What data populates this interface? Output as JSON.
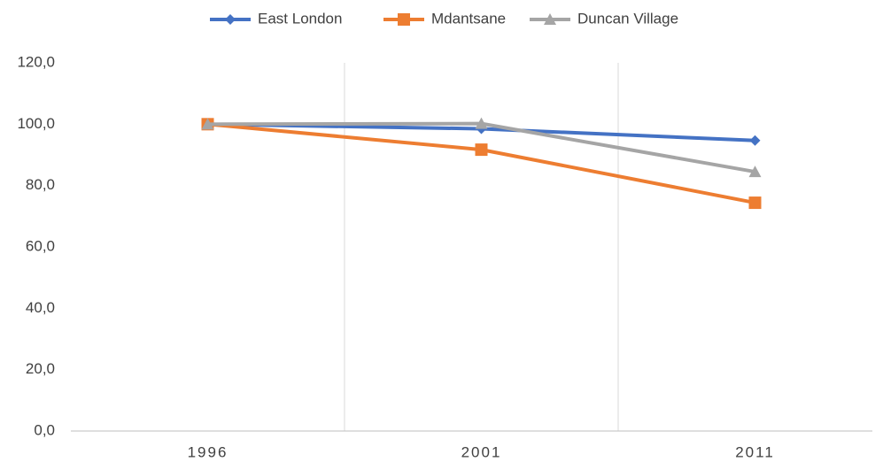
{
  "chart_data": {
    "type": "line",
    "categories": [
      "1996",
      "2001",
      "2011"
    ],
    "series": [
      {
        "name": "East London",
        "color": "#4472c4",
        "marker": "diamond",
        "values": [
          100,
          98.5,
          94.7
        ]
      },
      {
        "name": "Mdantsane",
        "color": "#ed7d31",
        "marker": "square",
        "values": [
          100,
          91.7,
          74.4
        ]
      },
      {
        "name": "Duncan Village",
        "color": "#a5a5a5",
        "marker": "triangle",
        "values": [
          100,
          100.2,
          84.5
        ]
      }
    ],
    "ylim": [
      0,
      120
    ],
    "yticks": [
      {
        "value": 0,
        "label": "0,0"
      },
      {
        "value": 20,
        "label": "20,0"
      },
      {
        "value": 40,
        "label": "40,0"
      },
      {
        "value": 60,
        "label": "60,0"
      },
      {
        "value": 80,
        "label": "80,0"
      },
      {
        "value": 100,
        "label": "100,0"
      },
      {
        "value": 120,
        "label": "120,0"
      }
    ],
    "grid": false,
    "category_grid": true,
    "legend": "top"
  }
}
